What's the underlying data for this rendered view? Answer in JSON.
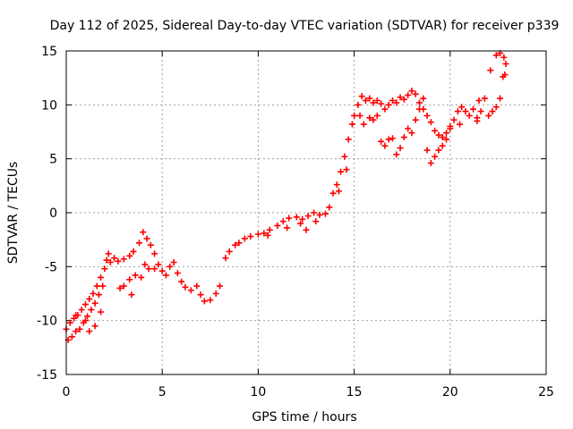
{
  "chart_data": {
    "type": "scatter",
    "title": "Day 112 of 2025, Sidereal Day-to-day VTEC variation (SDTVAR) for receiver p339",
    "xlabel": "GPS time / hours",
    "ylabel": "SDTVAR / TECUs",
    "xlim": [
      0,
      25
    ],
    "ylim": [
      -15,
      15
    ],
    "xticks": [
      0,
      5,
      10,
      15,
      20,
      25
    ],
    "yticks": [
      -15,
      -10,
      -5,
      0,
      5,
      10,
      15
    ],
    "grid": true,
    "marker": "+",
    "color": "#ff0000",
    "series": [
      {
        "points": [
          [
            0.0,
            -10.8
          ],
          [
            0.1,
            -11.8
          ],
          [
            0.2,
            -10.2
          ],
          [
            0.3,
            -11.5
          ],
          [
            0.4,
            -9.8
          ],
          [
            0.5,
            -11.0
          ],
          [
            0.6,
            -9.5
          ],
          [
            0.7,
            -10.8
          ],
          [
            0.8,
            -9.0
          ],
          [
            0.9,
            -10.2
          ],
          [
            1.0,
            -8.5
          ],
          [
            1.1,
            -9.6
          ],
          [
            1.2,
            -8.0
          ],
          [
            1.3,
            -9.0
          ],
          [
            1.4,
            -7.5
          ],
          [
            1.5,
            -8.4
          ],
          [
            1.6,
            -6.8
          ],
          [
            1.7,
            -7.6
          ],
          [
            1.8,
            -6.0
          ],
          [
            1.9,
            -6.8
          ],
          [
            2.0,
            -5.2
          ],
          [
            2.1,
            -4.4
          ],
          [
            2.2,
            -3.8
          ],
          [
            2.3,
            -4.6
          ],
          [
            2.5,
            -4.2
          ],
          [
            2.7,
            -4.5
          ],
          [
            3.0,
            -4.3
          ],
          [
            3.3,
            -4.0
          ],
          [
            3.5,
            -3.6
          ],
          [
            3.8,
            -2.8
          ],
          [
            4.0,
            -1.8
          ],
          [
            4.2,
            -2.4
          ],
          [
            4.4,
            -3.0
          ],
          [
            4.6,
            -3.8
          ],
          [
            4.8,
            -4.8
          ],
          [
            5.0,
            -5.4
          ],
          [
            5.2,
            -5.8
          ],
          [
            5.4,
            -5.0
          ],
          [
            5.6,
            -4.6
          ],
          [
            5.8,
            -5.6
          ],
          [
            6.0,
            -6.4
          ],
          [
            6.2,
            -6.9
          ],
          [
            6.5,
            -7.2
          ],
          [
            6.8,
            -6.8
          ],
          [
            7.0,
            -7.6
          ],
          [
            7.2,
            -8.2
          ],
          [
            7.5,
            -8.1
          ],
          [
            7.8,
            -7.5
          ],
          [
            8.0,
            -6.8
          ],
          [
            3.0,
            -6.8
          ],
          [
            3.3,
            -6.2
          ],
          [
            3.6,
            -5.8
          ],
          [
            3.9,
            -6.0
          ],
          [
            2.8,
            -7.0
          ],
          [
            4.1,
            -4.8
          ],
          [
            4.3,
            -5.2
          ],
          [
            4.6,
            -5.2
          ],
          [
            3.4,
            -7.6
          ],
          [
            0.5,
            -9.5
          ],
          [
            1.0,
            -10.0
          ],
          [
            1.5,
            -10.5
          ],
          [
            1.8,
            -9.2
          ],
          [
            1.2,
            -11.0
          ],
          [
            8.3,
            -4.2
          ],
          [
            8.5,
            -3.6
          ],
          [
            8.8,
            -3.0
          ],
          [
            9.0,
            -2.8
          ],
          [
            9.3,
            -2.4
          ],
          [
            9.6,
            -2.2
          ],
          [
            10.0,
            -2.0
          ],
          [
            10.3,
            -1.9
          ],
          [
            10.6,
            -1.6
          ],
          [
            11.0,
            -1.2
          ],
          [
            11.3,
            -0.8
          ],
          [
            11.6,
            -0.5
          ],
          [
            12.0,
            -0.4
          ],
          [
            12.3,
            -0.6
          ],
          [
            12.6,
            -0.3
          ],
          [
            12.9,
            0.0
          ],
          [
            13.2,
            -0.2
          ],
          [
            13.5,
            -0.1
          ],
          [
            10.5,
            -2.1
          ],
          [
            11.5,
            -1.4
          ],
          [
            12.2,
            -1.0
          ],
          [
            12.5,
            -1.6
          ],
          [
            13.0,
            -0.8
          ],
          [
            13.7,
            0.5
          ],
          [
            13.9,
            1.8
          ],
          [
            14.1,
            2.6
          ],
          [
            14.3,
            3.8
          ],
          [
            14.5,
            5.2
          ],
          [
            14.7,
            6.8
          ],
          [
            14.9,
            8.2
          ],
          [
            15.0,
            9.0
          ],
          [
            15.2,
            10.0
          ],
          [
            15.4,
            10.8
          ],
          [
            15.6,
            10.4
          ],
          [
            15.8,
            10.6
          ],
          [
            16.0,
            10.2
          ],
          [
            16.2,
            10.4
          ],
          [
            16.4,
            10.1
          ],
          [
            16.6,
            9.6
          ],
          [
            16.8,
            10.0
          ],
          [
            17.0,
            10.4
          ],
          [
            17.2,
            10.2
          ],
          [
            17.4,
            10.7
          ],
          [
            17.6,
            10.5
          ],
          [
            17.8,
            10.9
          ],
          [
            18.0,
            11.3
          ],
          [
            18.2,
            11.0
          ],
          [
            18.4,
            10.2
          ],
          [
            18.6,
            9.6
          ],
          [
            18.8,
            9.0
          ],
          [
            19.0,
            8.4
          ],
          [
            19.2,
            7.6
          ],
          [
            19.4,
            7.2
          ],
          [
            19.6,
            7.0
          ],
          [
            19.8,
            7.4
          ],
          [
            20.0,
            8.0
          ],
          [
            20.2,
            8.6
          ],
          [
            20.4,
            9.4
          ],
          [
            20.6,
            9.8
          ],
          [
            20.8,
            9.4
          ],
          [
            21.0,
            9.0
          ],
          [
            21.2,
            9.6
          ],
          [
            21.4,
            8.8
          ],
          [
            21.6,
            9.4
          ],
          [
            14.6,
            4.0
          ],
          [
            14.2,
            2.0
          ],
          [
            15.8,
            8.8
          ],
          [
            16.0,
            8.6
          ],
          [
            16.2,
            9.0
          ],
          [
            16.4,
            6.6
          ],
          [
            16.6,
            6.2
          ],
          [
            16.8,
            6.8
          ],
          [
            17.0,
            6.9
          ],
          [
            17.2,
            5.4
          ],
          [
            17.4,
            6.0
          ],
          [
            17.6,
            7.0
          ],
          [
            17.8,
            7.8
          ],
          [
            18.0,
            7.4
          ],
          [
            18.2,
            8.6
          ],
          [
            18.4,
            9.6
          ],
          [
            18.6,
            10.6
          ],
          [
            18.8,
            5.8
          ],
          [
            19.0,
            4.6
          ],
          [
            19.2,
            5.2
          ],
          [
            19.4,
            5.8
          ],
          [
            19.6,
            6.2
          ],
          [
            19.8,
            6.8
          ],
          [
            20.0,
            7.8
          ],
          [
            20.5,
            8.2
          ],
          [
            21.5,
            10.4
          ],
          [
            21.8,
            10.6
          ],
          [
            22.0,
            9.0
          ],
          [
            22.2,
            9.4
          ],
          [
            22.4,
            9.8
          ],
          [
            22.6,
            10.6
          ],
          [
            21.4,
            8.5
          ],
          [
            15.3,
            9.0
          ],
          [
            15.5,
            8.2
          ],
          [
            22.1,
            13.2
          ],
          [
            22.4,
            14.6
          ],
          [
            22.6,
            14.8
          ],
          [
            22.8,
            14.4
          ],
          [
            22.9,
            13.8
          ],
          [
            22.75,
            12.6
          ],
          [
            22.85,
            12.8
          ]
        ]
      }
    ]
  }
}
